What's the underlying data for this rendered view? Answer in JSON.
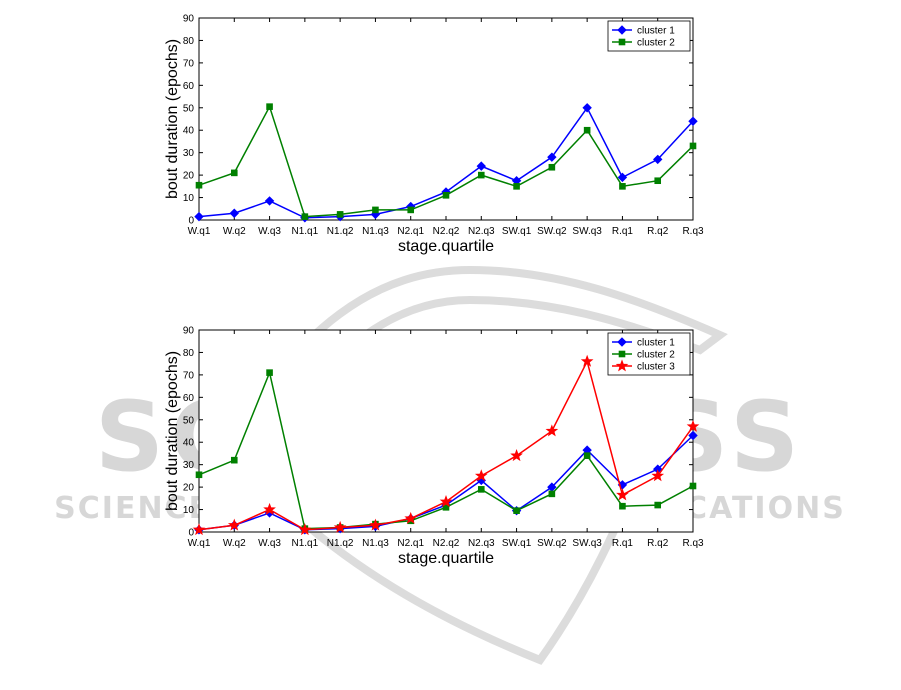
{
  "watermark": {
    "line1": "SCITEPRESS",
    "line2": "SCIENCE AND TECHNOLOGY PUBLICATIONS",
    "color": "#d7d7d7"
  },
  "chart_data": [
    {
      "type": "line",
      "categories": [
        "W.q1",
        "W.q2",
        "W.q3",
        "N1.q1",
        "N1.q2",
        "N1.q3",
        "N2.q1",
        "N2.q2",
        "N2.q3",
        "SW.q1",
        "SW.q2",
        "SW.q3",
        "R.q1",
        "R.q2",
        "R.q3"
      ],
      "xlabel": "stage.quartile",
      "ylabel": "bout duration (epochs)",
      "ylim": [
        0,
        90
      ],
      "yticks": [
        0,
        10,
        20,
        30,
        40,
        50,
        60,
        70,
        80,
        90
      ],
      "legend_position": "top-right",
      "grid": false,
      "series": [
        {
          "name": "cluster 1",
          "color": "#0000ff",
          "marker": "diamond",
          "values": [
            1.5,
            3,
            8.5,
            1,
            1.5,
            2.5,
            6,
            12.5,
            24,
            17.5,
            28,
            50,
            19,
            27,
            44
          ]
        },
        {
          "name": "cluster 2",
          "color": "#008000",
          "marker": "square",
          "values": [
            15.5,
            21,
            50.5,
            1.5,
            2.5,
            4.5,
            4.5,
            11,
            20,
            15,
            23.5,
            40,
            15,
            17.5,
            33
          ]
        }
      ]
    },
    {
      "type": "line",
      "categories": [
        "W.q1",
        "W.q2",
        "W.q3",
        "N1.q1",
        "N1.q2",
        "N1.q3",
        "N2.q1",
        "N2.q2",
        "N2.q3",
        "SW.q1",
        "SW.q2",
        "SW.q3",
        "R.q1",
        "R.q2",
        "R.q3"
      ],
      "xlabel": "stage.quartile",
      "ylabel": "bout duration (epochs)",
      "ylim": [
        0,
        90
      ],
      "yticks": [
        0,
        10,
        20,
        30,
        40,
        50,
        60,
        70,
        80,
        90
      ],
      "legend_position": "top-right",
      "grid": false,
      "series": [
        {
          "name": "cluster 1",
          "color": "#0000ff",
          "marker": "diamond",
          "values": [
            1,
            3,
            8.5,
            1,
            1.5,
            2.5,
            6,
            12,
            23,
            9.5,
            20,
            36.5,
            21,
            28,
            43
          ]
        },
        {
          "name": "cluster 2",
          "color": "#008000",
          "marker": "square",
          "values": [
            25.5,
            32,
            71,
            1.5,
            2,
            3.5,
            5,
            11,
            19,
            9.5,
            17,
            34,
            11.5,
            12,
            20.5
          ]
        },
        {
          "name": "cluster 3",
          "color": "#ff0000",
          "marker": "star",
          "values": [
            1,
            3,
            10,
            1,
            2,
            3,
            6,
            13.5,
            25,
            34,
            45,
            76,
            16.5,
            25,
            47
          ]
        }
      ]
    }
  ]
}
